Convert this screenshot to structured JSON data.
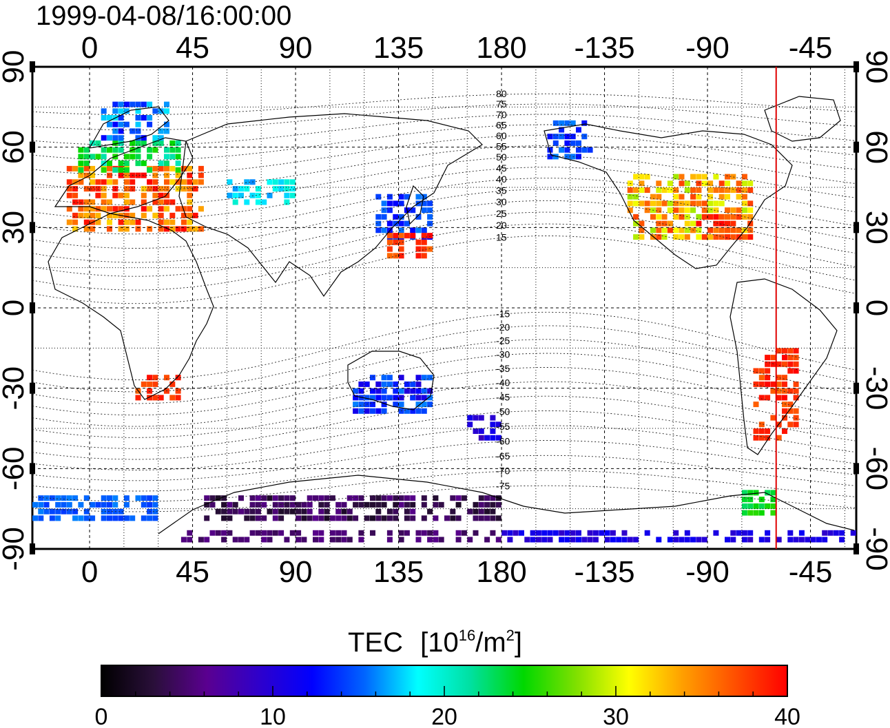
{
  "header": {
    "timestamp": "1999-04-08/16:00:00"
  },
  "map": {
    "lon_ticks": [
      "0",
      "45",
      "90",
      "135",
      "180",
      "-135",
      "-90",
      "-45"
    ],
    "lat_ticks": [
      "90",
      "60",
      "30",
      "0",
      "-30",
      "-60",
      "-90"
    ],
    "lon_range": [
      -25,
      335
    ],
    "lat_range": [
      -90,
      90
    ],
    "meridian_marker_lon": -60,
    "meridian_marker_color": "#e00000",
    "contour_labels_north": [
      "80",
      "75",
      "70",
      "65",
      "60",
      "55",
      "50",
      "45",
      "40",
      "35",
      "30",
      "25",
      "20",
      "15"
    ],
    "contour_labels_south": [
      "-15",
      "-20",
      "-25",
      "-30",
      "-35",
      "-40",
      "-45",
      "-50",
      "-55",
      "-60",
      "-65",
      "-70",
      "-75"
    ]
  },
  "colorbar": {
    "title": "TEC",
    "unit_base": "[10",
    "unit_exp1": "16",
    "unit_mid": "/m",
    "unit_exp2": "2",
    "unit_end": "]",
    "range": [
      0,
      40
    ],
    "tick_labels": [
      "0",
      "10",
      "20",
      "30",
      "40"
    ],
    "stops": [
      "#000000",
      "#2a0f3a",
      "#5a0090",
      "#2e00cc",
      "#0000ff",
      "#0066ff",
      "#00ffff",
      "#00e0a0",
      "#00d800",
      "#80e000",
      "#ffff00",
      "#ffa000",
      "#ff5000",
      "#ff0000"
    ]
  },
  "tec_regions": [
    {
      "lon": [
        -10,
        50
      ],
      "lat": [
        28,
        52
      ],
      "tec": [
        32,
        40
      ]
    },
    {
      "lon": [
        -5,
        40
      ],
      "lat": [
        50,
        62
      ],
      "tec": [
        20,
        26
      ]
    },
    {
      "lon": [
        5,
        35
      ],
      "lat": [
        62,
        75
      ],
      "tec": [
        12,
        18
      ]
    },
    {
      "lon": [
        60,
        90
      ],
      "lat": [
        38,
        48
      ],
      "tec": [
        16,
        20
      ]
    },
    {
      "lon": [
        125,
        150
      ],
      "lat": [
        25,
        42
      ],
      "tec": [
        12,
        16
      ]
    },
    {
      "lon": [
        130,
        150
      ],
      "lat": [
        18,
        28
      ],
      "tec": [
        36,
        40
      ]
    },
    {
      "lon": [
        -125,
        -70
      ],
      "lat": [
        25,
        50
      ],
      "tec": [
        28,
        38
      ]
    },
    {
      "lon": [
        -95,
        -70
      ],
      "lat": [
        25,
        35
      ],
      "tec": [
        36,
        40
      ]
    },
    {
      "lon": [
        -160,
        -140
      ],
      "lat": [
        55,
        70
      ],
      "tec": [
        12,
        16
      ]
    },
    {
      "lon": [
        -70,
        -50
      ],
      "lat": [
        -50,
        -15
      ],
      "tec": [
        36,
        40
      ]
    },
    {
      "lon": [
        115,
        150
      ],
      "lat": [
        -40,
        -25
      ],
      "tec": [
        10,
        16
      ]
    },
    {
      "lon": [
        165,
        180
      ],
      "lat": [
        -50,
        -40
      ],
      "tec": [
        8,
        12
      ]
    },
    {
      "lon": [
        20,
        40
      ],
      "lat": [
        -35,
        -25
      ],
      "tec": [
        36,
        40
      ]
    },
    {
      "lon": [
        -75,
        -60
      ],
      "lat": [
        -78,
        -68
      ],
      "tec": [
        22,
        26
      ]
    },
    {
      "lon": [
        40,
        180
      ],
      "lat": [
        -88,
        -85
      ],
      "tec": [
        4,
        6
      ]
    },
    {
      "lon": [
        180,
        335
      ],
      "lat": [
        -88,
        -85
      ],
      "tec": [
        9,
        12
      ]
    },
    {
      "lon": [
        50,
        180
      ],
      "lat": [
        -80,
        -70
      ],
      "tec": [
        2,
        6
      ]
    },
    {
      "lon": [
        -25,
        30
      ],
      "lat": [
        -80,
        -72
      ],
      "tec": [
        14,
        16
      ]
    }
  ]
}
